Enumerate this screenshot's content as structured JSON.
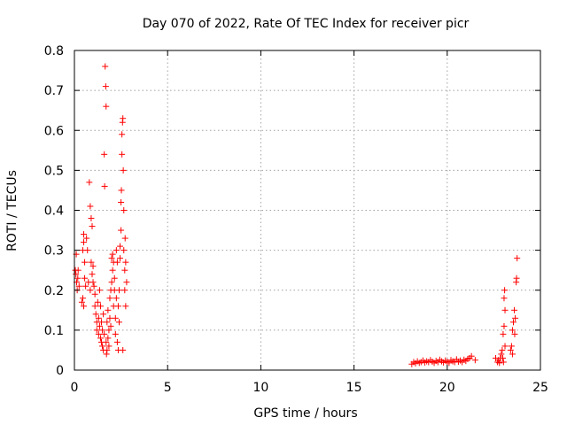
{
  "chart_data": {
    "type": "scatter",
    "title": "Day 070 of 2022, Rate Of TEC Index for receiver picr",
    "xlabel": "GPS time / hours",
    "ylabel": "ROTI / TECUs",
    "xlim": [
      0,
      25
    ],
    "ylim": [
      0,
      0.8
    ],
    "xticks": [
      0,
      5,
      10,
      15,
      20,
      25
    ],
    "xtick_labels": [
      "0",
      "5",
      "10",
      "15",
      "20",
      "25"
    ],
    "yticks": [
      0,
      0.1,
      0.2,
      0.3,
      0.4,
      0.5,
      0.6,
      0.7,
      0.8
    ],
    "ytick_labels": [
      "0",
      "0.1",
      "0.2",
      "0.3",
      "0.4",
      "0.5",
      "0.6",
      "0.7",
      "0.8"
    ],
    "grid": true,
    "legend": "none",
    "marker": "plus",
    "colors": {
      "points": "#ff0000",
      "grid": "#a0a0a0",
      "axes": "#000000"
    },
    "series": [
      {
        "points": [
          [
            0.05,
            0.25
          ],
          [
            0.08,
            0.24
          ],
          [
            0.1,
            0.29
          ],
          [
            0.12,
            0.22
          ],
          [
            0.15,
            0.2
          ],
          [
            0.18,
            0.23
          ],
          [
            0.2,
            0.25
          ],
          [
            0.25,
            0.21
          ],
          [
            0.4,
            0.17
          ],
          [
            0.45,
            0.18
          ],
          [
            0.5,
            0.16
          ],
          [
            0.45,
            0.3
          ],
          [
            0.5,
            0.32
          ],
          [
            0.5,
            0.34
          ],
          [
            0.55,
            0.27
          ],
          [
            0.55,
            0.23
          ],
          [
            0.6,
            0.21
          ],
          [
            0.65,
            0.33
          ],
          [
            0.7,
            0.3
          ],
          [
            0.75,
            0.22
          ],
          [
            0.8,
            0.47
          ],
          [
            0.85,
            0.41
          ],
          [
            0.85,
            0.2
          ],
          [
            0.9,
            0.38
          ],
          [
            0.9,
            0.27
          ],
          [
            0.95,
            0.36
          ],
          [
            0.95,
            0.24
          ],
          [
            1.0,
            0.22
          ],
          [
            1.0,
            0.26
          ],
          [
            1.05,
            0.21
          ],
          [
            1.1,
            0.19
          ],
          [
            1.1,
            0.16
          ],
          [
            1.15,
            0.14
          ],
          [
            1.2,
            0.12
          ],
          [
            1.2,
            0.1
          ],
          [
            1.25,
            0.17
          ],
          [
            1.3,
            0.13
          ],
          [
            1.3,
            0.09
          ],
          [
            1.35,
            0.11
          ],
          [
            1.35,
            0.2
          ],
          [
            1.4,
            0.16
          ],
          [
            1.4,
            0.08
          ],
          [
            1.45,
            0.12
          ],
          [
            1.45,
            0.07
          ],
          [
            1.5,
            0.1
          ],
          [
            1.5,
            0.06
          ],
          [
            1.55,
            0.14
          ],
          [
            1.55,
            0.05
          ],
          [
            1.6,
            0.54
          ],
          [
            1.6,
            0.09
          ],
          [
            1.62,
            0.46
          ],
          [
            1.65,
            0.76
          ],
          [
            1.68,
            0.71
          ],
          [
            1.7,
            0.66
          ],
          [
            1.7,
            0.07
          ],
          [
            1.72,
            0.04
          ],
          [
            1.75,
            0.12
          ],
          [
            1.75,
            0.05
          ],
          [
            1.8,
            0.08
          ],
          [
            1.8,
            0.15
          ],
          [
            1.85,
            0.06
          ],
          [
            1.85,
            0.1
          ],
          [
            1.9,
            0.13
          ],
          [
            1.9,
            0.18
          ],
          [
            1.95,
            0.2
          ],
          [
            1.95,
            0.11
          ],
          [
            2.0,
            0.28
          ],
          [
            2.0,
            0.22
          ],
          [
            2.05,
            0.25
          ],
          [
            2.05,
            0.29
          ],
          [
            2.1,
            0.27
          ],
          [
            2.1,
            0.16
          ],
          [
            2.15,
            0.2
          ],
          [
            2.15,
            0.23
          ],
          [
            2.2,
            0.13
          ],
          [
            2.2,
            0.09
          ],
          [
            2.25,
            0.18
          ],
          [
            2.25,
            0.3
          ],
          [
            2.3,
            0.27
          ],
          [
            2.3,
            0.07
          ],
          [
            2.35,
            0.05
          ],
          [
            2.35,
            0.16
          ],
          [
            2.4,
            0.2
          ],
          [
            2.4,
            0.12
          ],
          [
            2.45,
            0.28
          ],
          [
            2.45,
            0.31
          ],
          [
            2.5,
            0.35
          ],
          [
            2.5,
            0.42
          ],
          [
            2.52,
            0.45
          ],
          [
            2.55,
            0.54
          ],
          [
            2.55,
            0.59
          ],
          [
            2.58,
            0.62
          ],
          [
            2.6,
            0.63
          ],
          [
            2.6,
            0.05
          ],
          [
            2.62,
            0.5
          ],
          [
            2.65,
            0.4
          ],
          [
            2.65,
            0.3
          ],
          [
            2.7,
            0.25
          ],
          [
            2.7,
            0.2
          ],
          [
            2.72,
            0.33
          ],
          [
            2.75,
            0.27
          ],
          [
            2.75,
            0.16
          ],
          [
            2.8,
            0.22
          ],
          [
            18.1,
            0.015
          ],
          [
            18.2,
            0.02
          ],
          [
            18.3,
            0.017
          ],
          [
            18.4,
            0.022
          ],
          [
            18.5,
            0.018
          ],
          [
            18.6,
            0.02
          ],
          [
            18.7,
            0.024
          ],
          [
            18.8,
            0.019
          ],
          [
            18.9,
            0.022
          ],
          [
            19.0,
            0.02
          ],
          [
            19.1,
            0.025
          ],
          [
            19.2,
            0.021
          ],
          [
            19.3,
            0.018
          ],
          [
            19.4,
            0.023
          ],
          [
            19.5,
            0.02
          ],
          [
            19.6,
            0.026
          ],
          [
            19.7,
            0.022
          ],
          [
            19.8,
            0.019
          ],
          [
            19.9,
            0.024
          ],
          [
            20.0,
            0.021
          ],
          [
            20.1,
            0.018
          ],
          [
            20.2,
            0.025
          ],
          [
            20.3,
            0.022
          ],
          [
            20.4,
            0.02
          ],
          [
            20.5,
            0.027
          ],
          [
            20.6,
            0.021
          ],
          [
            20.7,
            0.024
          ],
          [
            20.8,
            0.02
          ],
          [
            20.9,
            0.026
          ],
          [
            21.0,
            0.023
          ],
          [
            21.1,
            0.028
          ],
          [
            21.2,
            0.03
          ],
          [
            21.3,
            0.035
          ],
          [
            21.5,
            0.025
          ],
          [
            22.6,
            0.03
          ],
          [
            22.7,
            0.02
          ],
          [
            22.75,
            0.025
          ],
          [
            22.8,
            0.018
          ],
          [
            22.85,
            0.03
          ],
          [
            22.9,
            0.04
          ],
          [
            22.95,
            0.05
          ],
          [
            22.98,
            0.03
          ],
          [
            23.0,
            0.09
          ],
          [
            23.02,
            0.02
          ],
          [
            23.05,
            0.11
          ],
          [
            23.05,
            0.18
          ],
          [
            23.08,
            0.2
          ],
          [
            23.1,
            0.15
          ],
          [
            23.1,
            0.06
          ],
          [
            23.4,
            0.05
          ],
          [
            23.45,
            0.06
          ],
          [
            23.5,
            0.1
          ],
          [
            23.5,
            0.04
          ],
          [
            23.55,
            0.12
          ],
          [
            23.6,
            0.15
          ],
          [
            23.62,
            0.09
          ],
          [
            23.65,
            0.13
          ],
          [
            23.7,
            0.22
          ],
          [
            23.72,
            0.23
          ],
          [
            23.75,
            0.28
          ]
        ]
      }
    ]
  }
}
